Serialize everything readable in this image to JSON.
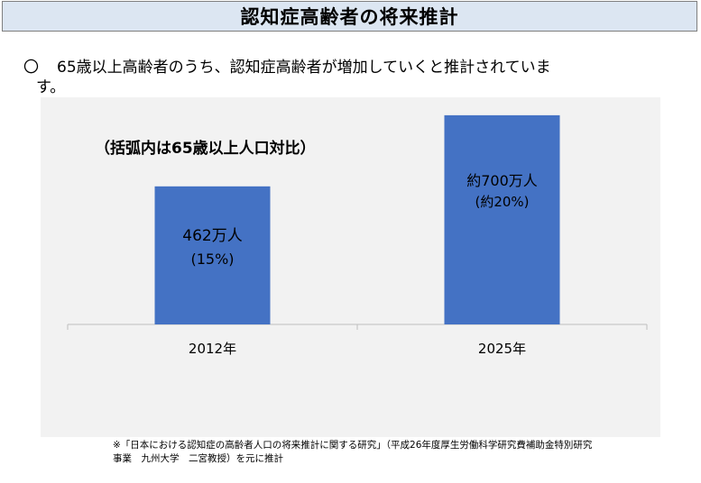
{
  "page": {
    "title": "認知症高齢者の将来推計",
    "bullet_mark": "〇",
    "bullet_line1": "65歳以上高齢者のうち、認知症高齢者が増加していくと推計されていま",
    "bullet_line2": "す。",
    "footnote_line1": "※「日本における認知症の高齢者人口の将来推計に関する研究」（平成26年度厚生労働科学研究費補助金特別研究",
    "footnote_line2": "事業　九州大学　二宮教授）を元に推計"
  },
  "chart_data": {
    "type": "bar",
    "title": "（括弧内は65歳以上人口対比）",
    "categories": [
      "2012年",
      "2025年"
    ],
    "values": [
      462,
      700
    ],
    "value_labels": [
      "462万人",
      "約700万人"
    ],
    "ratio_labels": [
      "(15%)",
      "(約20%)"
    ],
    "unit": "万人",
    "ylim": [
      0,
      760
    ],
    "bar_color": "#4472c4",
    "axis_color": "#bfbfbf",
    "background": "#f2f2f2",
    "grid": false,
    "legend": "none"
  }
}
